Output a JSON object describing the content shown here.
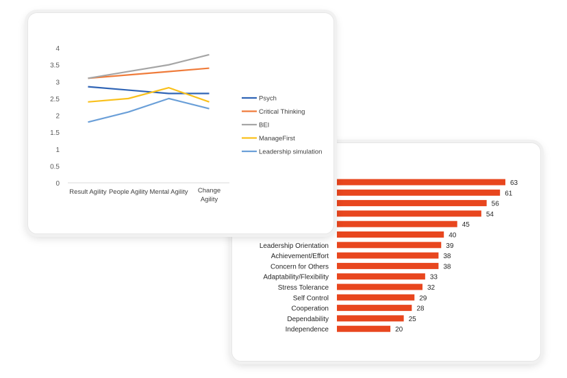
{
  "chart_data": [
    {
      "type": "line",
      "title": "",
      "xlabel": "",
      "ylabel": "",
      "categories": [
        "Result Agility",
        "People Agility",
        "Mental Agility",
        "Change Agility"
      ],
      "y_ticks": [
        "0",
        "0.5",
        "1",
        "1.5",
        "2",
        "2.5",
        "3",
        "3.5",
        "4"
      ],
      "ylim": [
        0,
        4
      ],
      "legend_position": "right",
      "series": [
        {
          "name": "Psych",
          "color": "#2e63b5",
          "values": [
            2.85,
            2.75,
            2.65,
            2.65
          ]
        },
        {
          "name": "Critical Thinking",
          "color": "#ef7b3a",
          "values": [
            3.1,
            3.2,
            3.3,
            3.4
          ]
        },
        {
          "name": "BEI",
          "color": "#a5a5a5",
          "values": [
            3.1,
            3.3,
            3.5,
            3.8
          ]
        },
        {
          "name": "ManageFirst",
          "color": "#f9c01b",
          "values": [
            2.4,
            2.5,
            2.82,
            2.4
          ]
        },
        {
          "name": "Leadership simulation",
          "color": "#6a9fd8",
          "values": [
            1.8,
            2.1,
            2.5,
            2.2
          ]
        }
      ]
    },
    {
      "type": "bar",
      "orientation": "horizontal",
      "bar_color": "#e8461e",
      "title": "",
      "xlim": [
        0,
        63
      ],
      "categories": [
        "",
        "",
        "",
        "",
        "",
        "",
        "Leadership Orientation",
        "Achievement/Effort",
        "Concern for Others",
        "Adaptability/Flexibility",
        "Stress Tolerance",
        "Self Control",
        "Cooperation",
        "Dependability",
        "Independence"
      ],
      "values": [
        63,
        61,
        56,
        54,
        45,
        40,
        39,
        38,
        38,
        33,
        32,
        29,
        28,
        25,
        20
      ]
    }
  ]
}
